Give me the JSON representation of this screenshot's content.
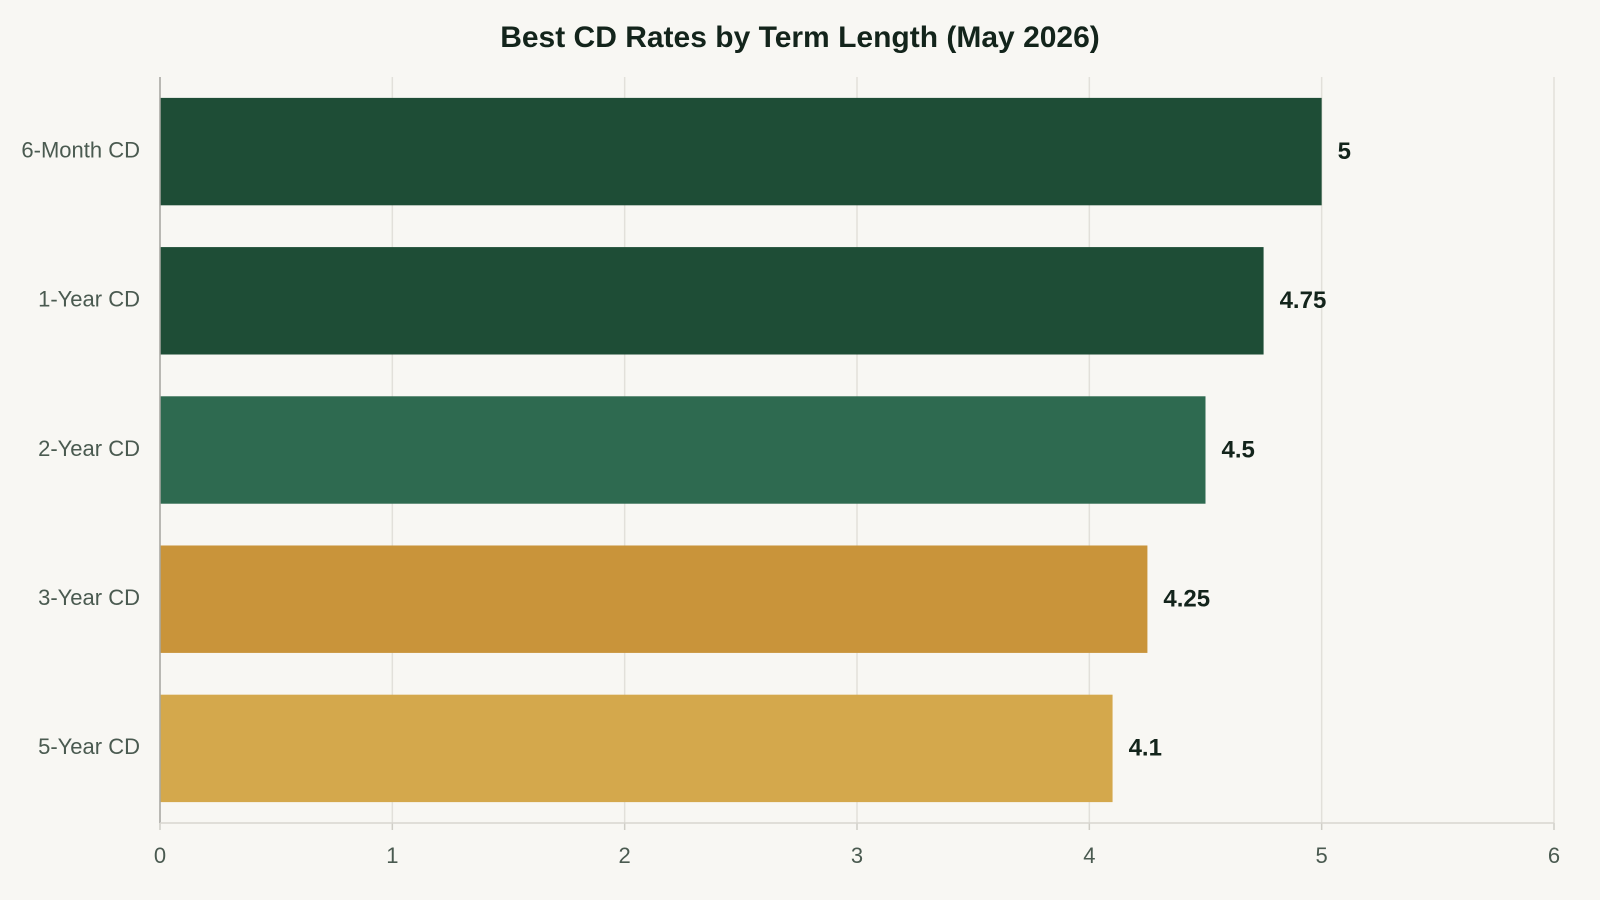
{
  "chart_data": {
    "type": "bar",
    "orientation": "horizontal",
    "title": "Best CD Rates by Term Length (May 2026)",
    "categories": [
      "6-Month CD",
      "1-Year CD",
      "2-Year CD",
      "3-Year CD",
      "5-Year CD"
    ],
    "values": [
      5,
      4.75,
      4.5,
      4.25,
      4.1
    ],
    "colors": [
      "#1e4d36",
      "#1e4d36",
      "#2e6a50",
      "#c9943a",
      "#d4a84c"
    ],
    "xlim": [
      0,
      6
    ],
    "xticks": [
      0,
      1,
      2,
      3,
      4,
      5,
      6
    ],
    "grid": true
  }
}
